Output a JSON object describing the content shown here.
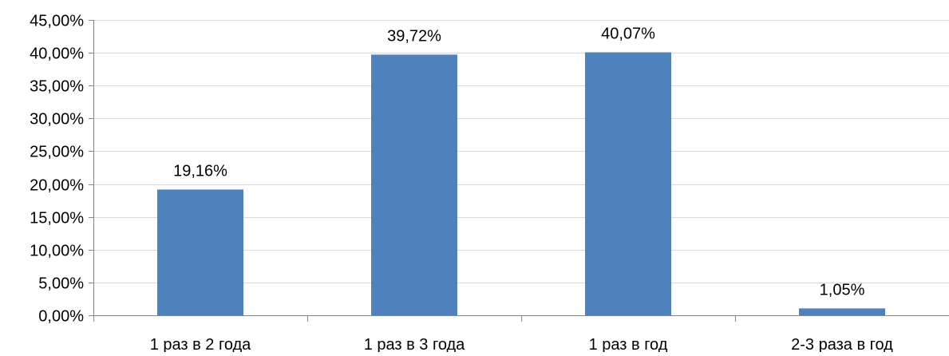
{
  "chart_data": {
    "type": "bar",
    "categories": [
      "1 раз в 2 года",
      "1 раз в 3 года",
      "1 раз в год",
      "2-3 раза в год"
    ],
    "values": [
      19.16,
      39.72,
      40.07,
      1.05
    ],
    "data_labels": [
      "19,16%",
      "39,72%",
      "40,07%",
      "1,05%"
    ],
    "y_ticks": [
      0,
      5,
      10,
      15,
      20,
      25,
      30,
      35,
      40,
      45
    ],
    "y_tick_labels": [
      "0,00%",
      "5,00%",
      "10,00%",
      "15,00%",
      "20,00%",
      "25,00%",
      "30,00%",
      "35,00%",
      "40,00%",
      "45,00%"
    ],
    "ylim": [
      0,
      45
    ],
    "grid": true,
    "legend": "none",
    "bar_color": "#4F81BD",
    "grid_color": "#D9D9D9",
    "axis_color": "#868686",
    "title": "",
    "xlabel": "",
    "ylabel": ""
  }
}
